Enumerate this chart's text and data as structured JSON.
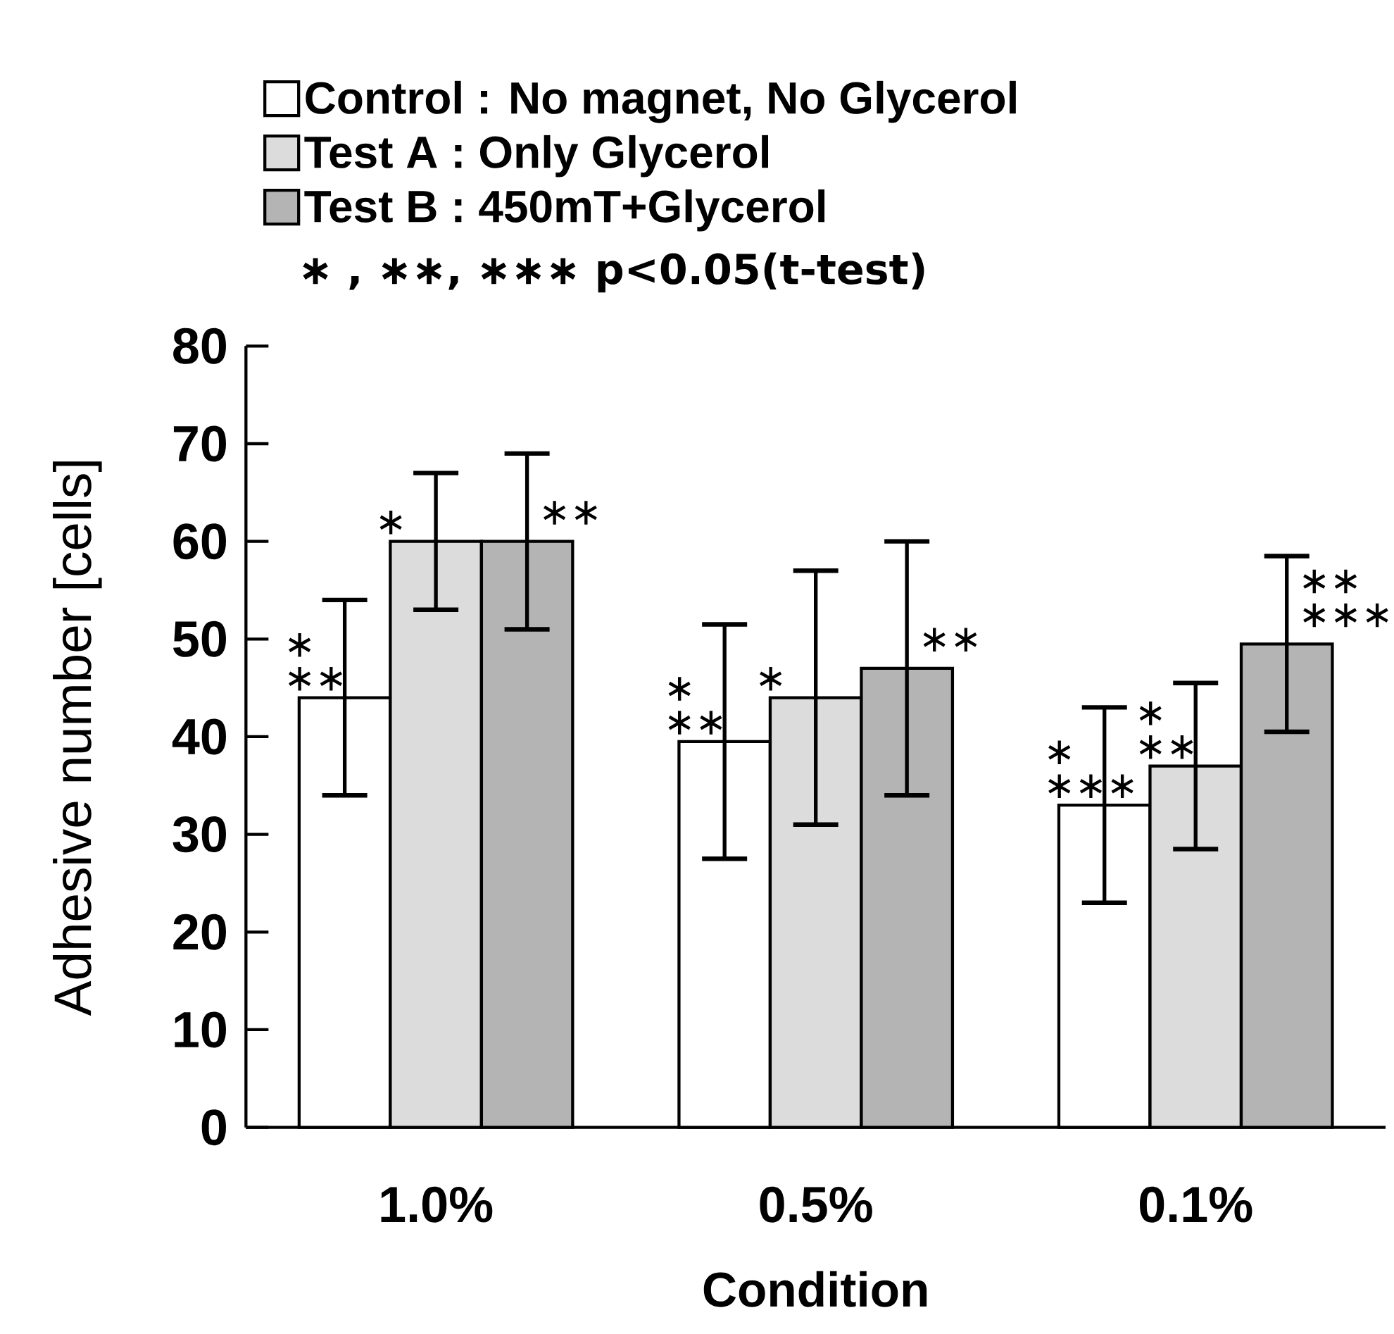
{
  "chart_data": {
    "type": "bar",
    "xlabel": "Condition",
    "ylabel": "Adhesive number [cells]",
    "categories": [
      "1.0%",
      "0.5%",
      "0.1%"
    ],
    "series": [
      {
        "name": "Control : No magnet, No Glycerol",
        "color": "#ffffff",
        "values": [
          44,
          39.5,
          33
        ],
        "errors": [
          10,
          12,
          10
        ],
        "value_labels": [
          "∗ ∗∗",
          "∗ ∗∗",
          "∗ ∗∗∗"
        ]
      },
      {
        "name": "Test A : Only Glycerol",
        "color": "#dcdcdc",
        "values": [
          60,
          44,
          37
        ],
        "errors": [
          7,
          13,
          8.5
        ],
        "value_labels": [
          "∗",
          "∗",
          "∗ ∗∗"
        ]
      },
      {
        "name": "Test B : 450mT+Glycerol",
        "color": "#b4b4b4",
        "values": [
          60,
          47,
          49.5
        ],
        "errors": [
          9,
          13,
          9
        ],
        "value_labels": [
          "∗∗",
          "∗∗",
          "∗∗ ∗∗∗"
        ]
      }
    ],
    "ylim": [
      0,
      80
    ],
    "yticks": [
      0,
      10,
      20,
      30,
      40,
      50,
      60,
      70,
      80
    ],
    "legend": "top",
    "grid": false,
    "annotations": [
      "∗ , ∗∗, ∗∗∗ p<0.05(t-test)"
    ]
  }
}
